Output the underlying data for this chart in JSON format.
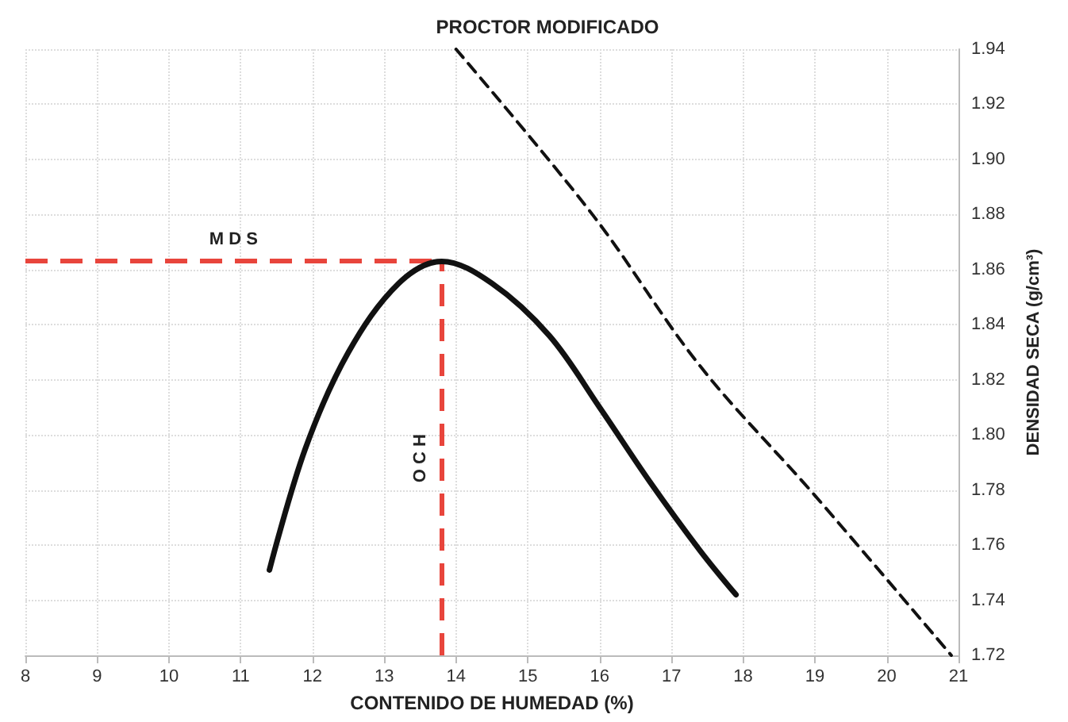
{
  "chart_data": {
    "type": "line",
    "title": "PROCTOR MODIFICADO",
    "xlabel": "CONTENIDO DE HUMEDAD (%)",
    "ylabel": "DENSIDAD SECA (g/cm³)",
    "series": [
      {
        "color": "#111111",
        "line_style": "solid",
        "x": [
          11.4,
          11.9,
          12.5,
          13.2,
          13.8,
          14.5,
          15.3,
          16.0,
          16.7,
          17.4,
          17.9
        ],
        "values": [
          1.751,
          1.795,
          1.83,
          1.855,
          1.863,
          1.855,
          1.836,
          1.81,
          1.783,
          1.758,
          1.742
        ]
      },
      {
        "color": "#111111",
        "line_style": "dashed",
        "x": [
          14.0,
          15.9,
          17.4,
          19.0,
          20.9
        ],
        "values": [
          1.94,
          1.88,
          1.825,
          1.778,
          1.72
        ]
      }
    ],
    "ref_lines": [
      {
        "axis": "y",
        "value": 1.863,
        "label": "M D S",
        "color": "#e8453c",
        "line_style": "dashed"
      },
      {
        "axis": "x",
        "value": 13.8,
        "label": "O C H",
        "color": "#e8453c",
        "line_style": "dashed"
      }
    ],
    "xlim": [
      8,
      21
    ],
    "xticks": [
      8,
      9,
      10,
      11,
      12,
      13,
      14,
      15,
      16,
      17,
      18,
      19,
      20,
      21
    ],
    "ylim": [
      1.72,
      1.94
    ],
    "yticks": [
      1.72,
      1.74,
      1.76,
      1.78,
      {
        "value": 1.8,
        "label": "1.80"
      },
      1.82,
      1.84,
      1.86,
      1.88,
      {
        "value": 1.9,
        "label": "1.90"
      },
      1.92,
      1.94
    ],
    "grid": true,
    "marker": "none"
  }
}
